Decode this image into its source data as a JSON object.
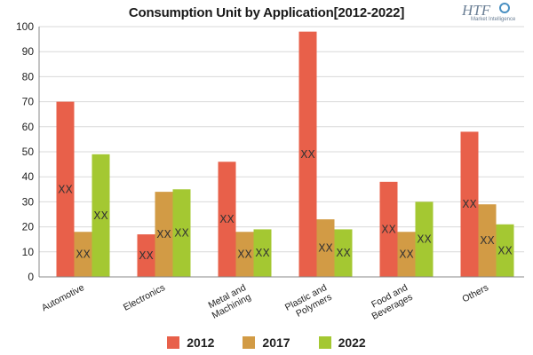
{
  "chart_data": {
    "type": "bar",
    "title": "Consumption Unit by  Application[2012-2022]",
    "xlabel": "",
    "ylabel": "",
    "ylim": [
      0,
      100
    ],
    "yticks": [
      0,
      10,
      20,
      30,
      40,
      50,
      60,
      70,
      80,
      90,
      100
    ],
    "grid": true,
    "legend_position": "bottom",
    "categories": [
      [
        "Automotive"
      ],
      [
        "Electronics"
      ],
      [
        "Metal and",
        "Machining"
      ],
      [
        "Plastic and",
        "Polymers"
      ],
      [
        "Food and",
        "Beverages"
      ],
      [
        "Others"
      ]
    ],
    "series": [
      {
        "name": "2012",
        "color": "#e8604a",
        "values": [
          70,
          17,
          46,
          98,
          38,
          58
        ]
      },
      {
        "name": "2017",
        "color": "#d29b45",
        "values": [
          18,
          34,
          18,
          23,
          18,
          29
        ]
      },
      {
        "name": "2022",
        "color": "#a4c832",
        "values": [
          49,
          35,
          19,
          19,
          30,
          21
        ]
      }
    ],
    "data_label": "XX"
  },
  "logo": {
    "text": "HTF",
    "subtext": "Market Intelligence"
  }
}
